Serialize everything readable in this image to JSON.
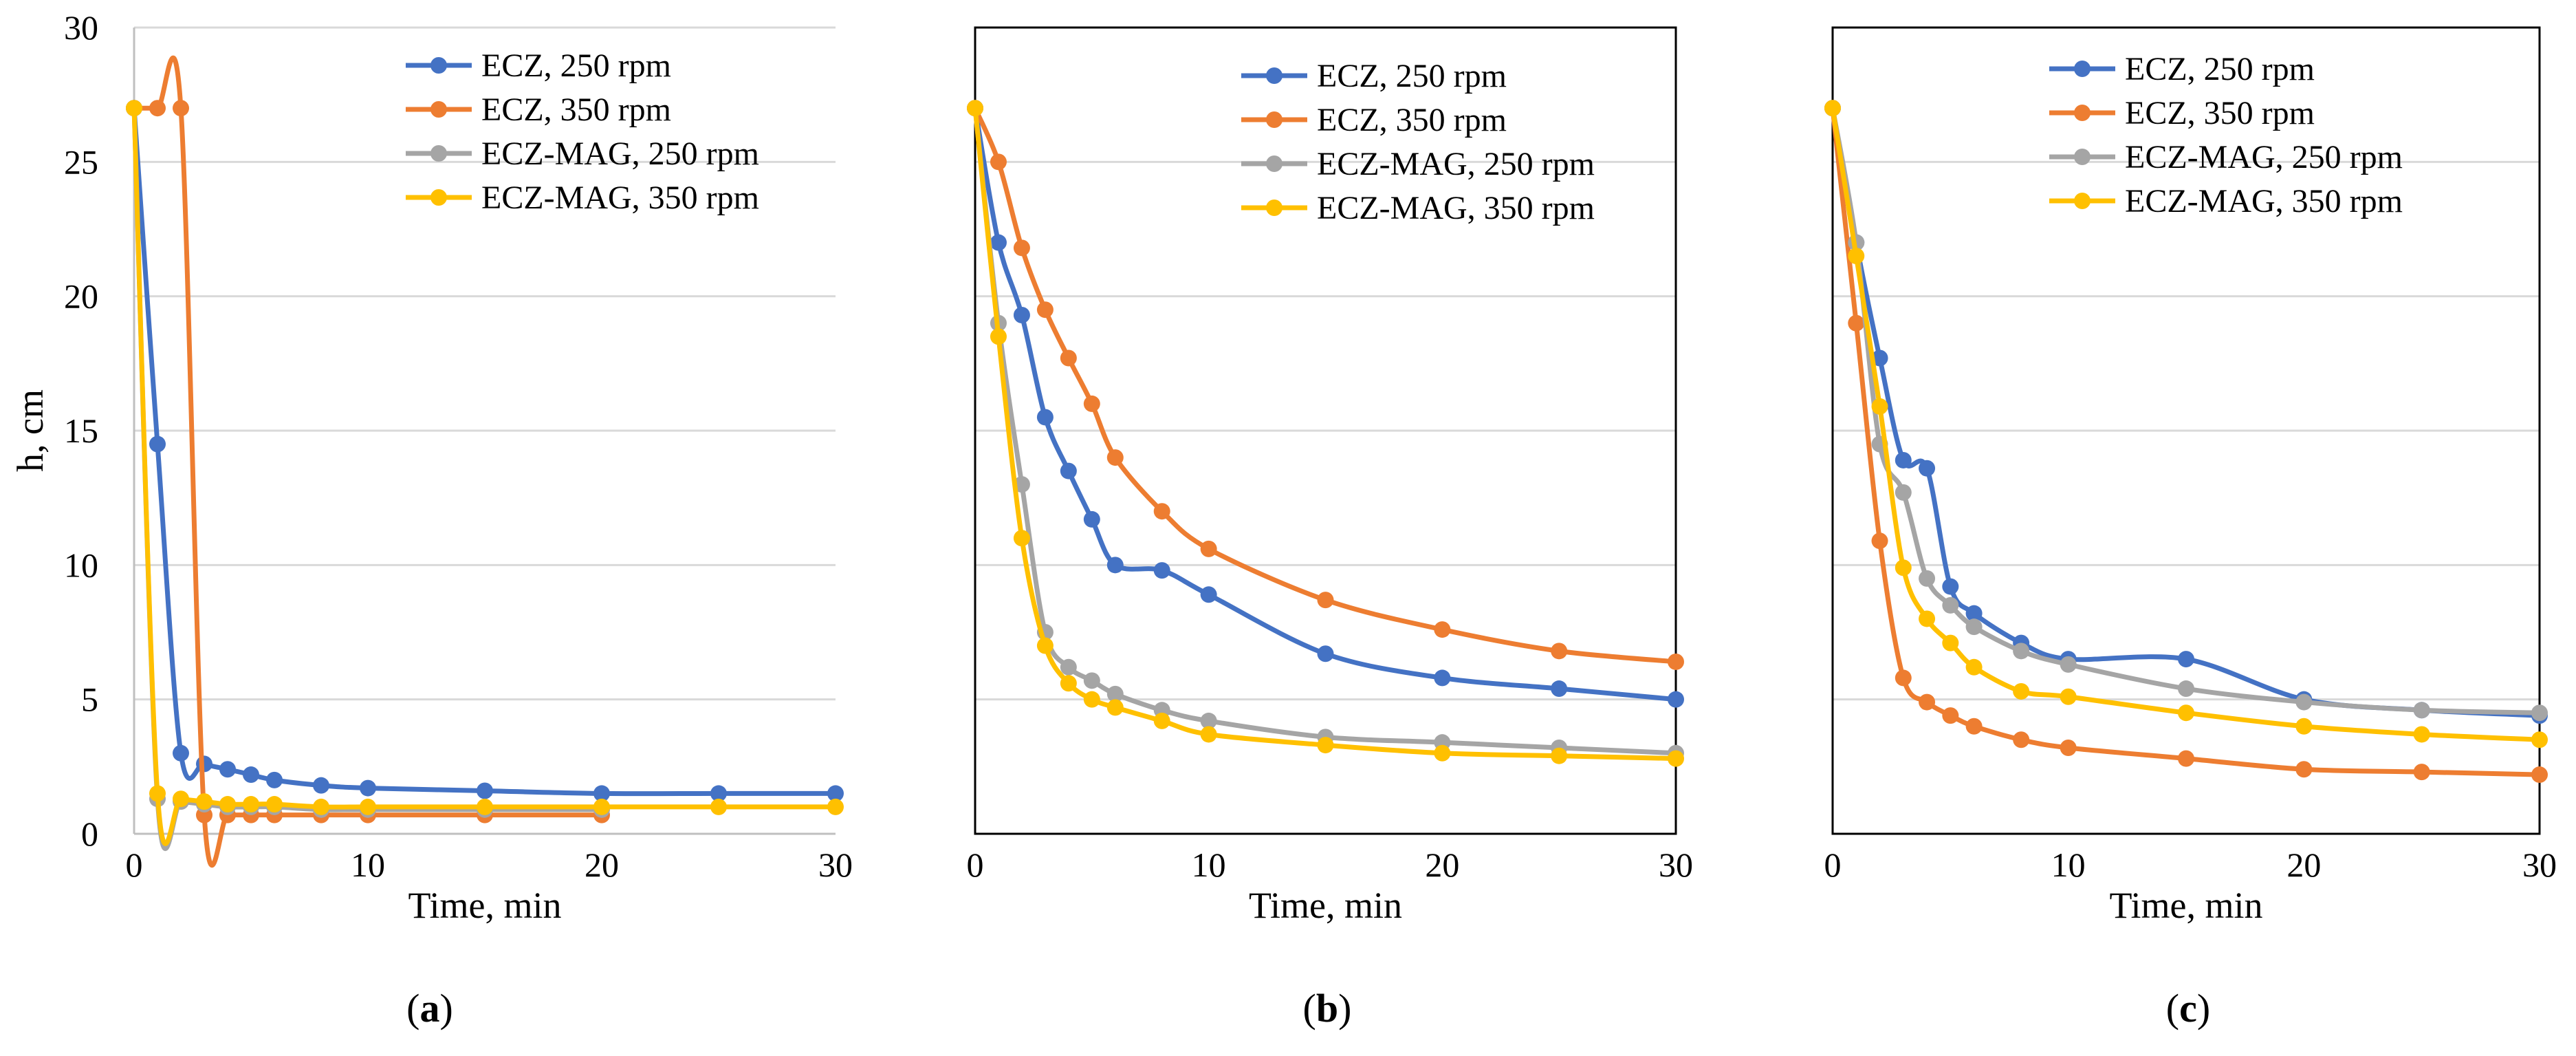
{
  "chart_data": [
    {
      "type": "line",
      "panel_label": "a",
      "xlabel": "Time, min",
      "ylabel": "h, cm",
      "xlim": [
        0,
        30
      ],
      "ylim": [
        0,
        30
      ],
      "xticks": [
        0,
        10,
        20,
        30
      ],
      "yticks": [
        0,
        5,
        10,
        15,
        20,
        25,
        30
      ],
      "grid": "horizontal",
      "legend_position": "top-right",
      "series": [
        {
          "name": "ECZ, 250 rpm",
          "color": "#4472C4",
          "x": [
            0,
            1,
            2,
            3,
            4,
            5,
            6,
            8,
            10,
            15,
            20,
            25,
            30
          ],
          "y": [
            27,
            14.5,
            3.0,
            2.6,
            2.4,
            2.2,
            2.0,
            1.8,
            1.7,
            1.6,
            1.5,
            1.5,
            1.5
          ]
        },
        {
          "name": "ECZ, 350 rpm",
          "color": "#ED7D31",
          "x": [
            0,
            1,
            2,
            3,
            4,
            5,
            6,
            8,
            10,
            15,
            20
          ],
          "y": [
            27,
            27,
            27,
            0.7,
            0.7,
            0.7,
            0.7,
            0.7,
            0.7,
            0.7,
            0.7
          ]
        },
        {
          "name": "ECZ-MAG, 250 rpm",
          "color": "#A5A5A5",
          "x": [
            0,
            1,
            2,
            3,
            4,
            5,
            6,
            8,
            10,
            15,
            20
          ],
          "y": [
            27,
            1.3,
            1.2,
            1.1,
            1.0,
            1.0,
            1.0,
            0.9,
            0.9,
            0.9,
            0.9
          ]
        },
        {
          "name": "ECZ-MAG, 350 rpm",
          "color": "#FFC000",
          "x": [
            0,
            1,
            2,
            3,
            4,
            5,
            6,
            8,
            10,
            15,
            20,
            25,
            30
          ],
          "y": [
            27,
            1.5,
            1.3,
            1.2,
            1.1,
            1.1,
            1.1,
            1.0,
            1.0,
            1.0,
            1.0,
            1.0,
            1.0
          ]
        }
      ]
    },
    {
      "type": "line",
      "panel_label": "b",
      "xlabel": "Time, min",
      "xlim": [
        0,
        30
      ],
      "ylim": [
        0,
        30
      ],
      "xticks": [
        0,
        10,
        20,
        30
      ],
      "grid": "horizontal",
      "legend_position": "top-right",
      "series": [
        {
          "name": "ECZ, 250 rpm",
          "color": "#4472C4",
          "x": [
            0,
            1,
            2,
            3,
            4,
            5,
            6,
            8,
            10,
            15,
            20,
            25,
            30
          ],
          "y": [
            27,
            22,
            19.3,
            15.5,
            13.5,
            11.7,
            10.0,
            9.8,
            8.9,
            6.7,
            5.8,
            5.4,
            5.0
          ]
        },
        {
          "name": "ECZ, 350 rpm",
          "color": "#ED7D31",
          "x": [
            0,
            1,
            2,
            3,
            4,
            5,
            6,
            8,
            10,
            15,
            20,
            25,
            30
          ],
          "y": [
            27,
            25,
            21.8,
            19.5,
            17.7,
            16.0,
            14.0,
            12.0,
            10.6,
            8.7,
            7.6,
            6.8,
            6.4
          ]
        },
        {
          "name": "ECZ-MAG, 250 rpm",
          "color": "#A5A5A5",
          "x": [
            0,
            1,
            2,
            3,
            4,
            5,
            6,
            8,
            10,
            15,
            20,
            25,
            30
          ],
          "y": [
            27,
            19,
            13,
            7.5,
            6.2,
            5.7,
            5.2,
            4.6,
            4.2,
            3.6,
            3.4,
            3.2,
            3.0
          ]
        },
        {
          "name": "ECZ-MAG, 350 rpm",
          "color": "#FFC000",
          "x": [
            0,
            1,
            2,
            3,
            4,
            5,
            6,
            8,
            10,
            15,
            20,
            25,
            30
          ],
          "y": [
            27,
            18.5,
            11,
            7.0,
            5.6,
            5.0,
            4.7,
            4.2,
            3.7,
            3.3,
            3.0,
            2.9,
            2.8
          ]
        }
      ]
    },
    {
      "type": "line",
      "panel_label": "c",
      "xlabel": "Time, min",
      "xlim": [
        0,
        30
      ],
      "ylim": [
        0,
        30
      ],
      "xticks": [
        0,
        10,
        20,
        30
      ],
      "grid": "horizontal",
      "legend_position": "top-right",
      "series": [
        {
          "name": "ECZ, 250 rpm",
          "color": "#4472C4",
          "x": [
            0,
            1,
            2,
            3,
            4,
            5,
            6,
            8,
            10,
            15,
            20,
            25,
            30
          ],
          "y": [
            27,
            22,
            17.7,
            13.9,
            13.6,
            9.2,
            8.2,
            7.1,
            6.5,
            6.5,
            5.0,
            4.6,
            4.4
          ]
        },
        {
          "name": "ECZ, 350 rpm",
          "color": "#ED7D31",
          "x": [
            0,
            1,
            2,
            3,
            4,
            5,
            6,
            8,
            10,
            15,
            20,
            25,
            30
          ],
          "y": [
            27,
            19,
            10.9,
            5.8,
            4.9,
            4.4,
            4.0,
            3.5,
            3.2,
            2.8,
            2.4,
            2.3,
            2.2
          ]
        },
        {
          "name": "ECZ-MAG, 250 rpm",
          "color": "#A5A5A5",
          "x": [
            0,
            1,
            2,
            3,
            4,
            5,
            6,
            8,
            10,
            15,
            20,
            25,
            30
          ],
          "y": [
            27,
            22,
            14.5,
            12.7,
            9.5,
            8.5,
            7.7,
            6.8,
            6.3,
            5.4,
            4.9,
            4.6,
            4.5
          ]
        },
        {
          "name": "ECZ-MAG, 350 rpm",
          "color": "#FFC000",
          "x": [
            0,
            1,
            2,
            3,
            4,
            5,
            6,
            8,
            10,
            15,
            20,
            25,
            30
          ],
          "y": [
            27,
            21.5,
            15.9,
            9.9,
            8.0,
            7.1,
            6.2,
            5.3,
            5.1,
            4.5,
            4.0,
            3.7,
            3.5
          ]
        }
      ]
    }
  ]
}
